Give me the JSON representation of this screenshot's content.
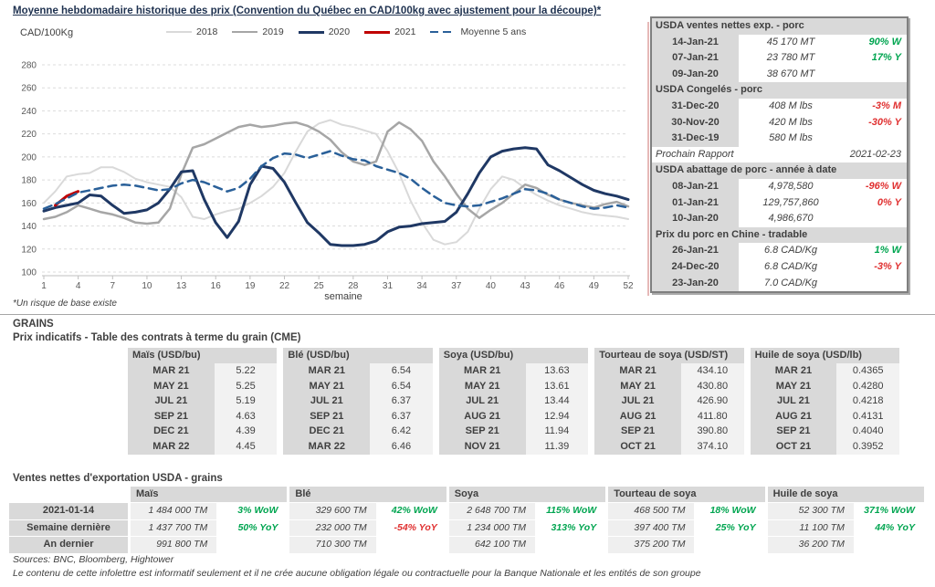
{
  "title": "Moyenne hebdomadaire historique des prix (Convention du Québec en CAD/100kg avec ajustement pour la découpe)*",
  "colors": {
    "green": "#00A550",
    "red": "#E03030",
    "navy": "#1f3864",
    "grid": "#dcdcdc",
    "axis": "#bfbfbf"
  },
  "chart_data": {
    "type": "line",
    "title": "Moyenne hebdomadaire historique des prix (Convention du Québec en CAD/100kg avec ajustement pour la découpe)*",
    "ylabel": "CAD/100Kg",
    "xlabel": "semaine",
    "footnote": "*Un risque de base existe",
    "xlim": [
      1,
      52
    ],
    "ylim": [
      100,
      280
    ],
    "y_step": 20,
    "x_ticks": [
      1,
      4,
      7,
      10,
      13,
      16,
      19,
      22,
      25,
      28,
      31,
      34,
      37,
      40,
      43,
      46,
      49,
      52
    ],
    "grid": "horizontal-dashed",
    "legend_position": "top",
    "series": [
      {
        "name": "2018",
        "color": "#d9d9d9",
        "dash": "solid",
        "width": 2,
        "values": [
          160,
          170,
          183,
          185,
          186,
          191,
          191,
          187,
          181,
          178,
          176,
          174,
          165,
          148,
          146,
          150,
          153,
          155,
          160,
          166,
          174,
          186,
          205,
          222,
          229,
          232,
          228,
          226,
          223,
          220,
          205,
          186,
          162,
          143,
          128,
          124,
          126,
          135,
          155,
          172,
          183,
          180,
          173,
          167,
          162,
          158,
          155,
          152,
          150,
          149,
          148,
          146
        ]
      },
      {
        "name": "2019",
        "color": "#a6a6a6",
        "dash": "solid",
        "width": 2.5,
        "values": [
          146,
          148,
          152,
          158,
          155,
          152,
          150,
          147,
          143,
          142,
          143,
          155,
          185,
          208,
          211,
          216,
          221,
          226,
          228,
          226,
          227,
          229,
          230,
          227,
          222,
          215,
          204,
          196,
          193,
          196,
          222,
          230,
          224,
          214,
          196,
          183,
          168,
          155,
          147,
          154,
          160,
          168,
          176,
          173,
          167,
          163,
          160,
          158,
          156,
          159,
          161,
          157
        ]
      },
      {
        "name": "2020",
        "color": "#1f3864",
        "dash": "solid",
        "width": 3,
        "values": [
          153,
          156,
          158,
          160,
          167,
          166,
          158,
          151,
          152,
          154,
          160,
          172,
          187,
          188,
          163,
          143,
          130,
          144,
          176,
          192,
          190,
          178,
          160,
          143,
          134,
          124,
          123,
          123,
          124,
          127,
          135,
          139,
          140,
          142,
          143,
          144,
          152,
          168,
          186,
          200,
          205,
          207,
          208,
          207,
          193,
          188,
          182,
          176,
          171,
          168,
          166,
          163
        ]
      },
      {
        "name": "2021",
        "color": "#c00000",
        "dash": "solid",
        "width": 3,
        "values": [
          null,
          158,
          166,
          170,
          null,
          null,
          null,
          null,
          null,
          null,
          null,
          null,
          null,
          null,
          null,
          null,
          null,
          null,
          null,
          null,
          null,
          null,
          null,
          null,
          null,
          null,
          null,
          null,
          null,
          null,
          null,
          null,
          null,
          null,
          null,
          null,
          null,
          null,
          null,
          null,
          null,
          null,
          null,
          null,
          null,
          null,
          null,
          null,
          null,
          null,
          null,
          null
        ]
      },
      {
        "name": "Moyenne 5 ans",
        "color": "#2a6099",
        "dash": "dashed",
        "width": 2.5,
        "values": [
          155,
          159,
          164,
          169,
          171,
          173,
          175,
          176,
          175,
          173,
          171,
          172,
          177,
          180,
          178,
          174,
          170,
          173,
          181,
          192,
          199,
          203,
          202,
          199,
          202,
          205,
          201,
          198,
          197,
          192,
          189,
          186,
          181,
          173,
          166,
          160,
          158,
          157,
          158,
          161,
          164,
          168,
          172,
          171,
          168,
          163,
          160,
          157,
          155,
          156,
          158,
          156
        ]
      }
    ]
  },
  "usda_panel": {
    "sections": [
      {
        "header": "USDA ventes nettes exp. - porc",
        "rows": [
          {
            "date": "14-Jan-21",
            "value": "45 170  MT",
            "pct": "90% W",
            "pct_color": "green"
          },
          {
            "date": "07-Jan-21",
            "value": "23 780  MT",
            "pct": "17% Y",
            "pct_color": "green"
          },
          {
            "date": "09-Jan-20",
            "value": "38 670  MT",
            "pct": ""
          }
        ]
      },
      {
        "header": "USDA Congelés - porc",
        "rows": [
          {
            "date": "31-Dec-20",
            "value": "408 M lbs",
            "pct": "-3% M",
            "pct_color": "red"
          },
          {
            "date": "30-Nov-20",
            "value": "420 M lbs",
            "pct": "-30% Y",
            "pct_color": "red"
          },
          {
            "date": "31-Dec-19",
            "value": "580 M lbs",
            "pct": ""
          }
        ],
        "note": {
          "label": "Prochain Rapport",
          "value": "2021-02-23"
        }
      },
      {
        "header": "USDA abattage de porc - année à date",
        "rows": [
          {
            "date": "08-Jan-21",
            "value": "4,978,580",
            "pct": "-96% W",
            "pct_color": "red"
          },
          {
            "date": "01-Jan-21",
            "value": "129,757,860",
            "pct": "0% Y",
            "pct_color": "red"
          },
          {
            "date": "10-Jan-20",
            "value": "4,986,670",
            "pct": ""
          }
        ]
      },
      {
        "header": "Prix du porc en Chine - tradable",
        "rows": [
          {
            "date": "26-Jan-21",
            "value": "6.8 CAD/Kg",
            "pct": "1% W",
            "pct_color": "green"
          },
          {
            "date": "24-Dec-20",
            "value": "6.8 CAD/Kg",
            "pct": "-3% Y",
            "pct_color": "red"
          },
          {
            "date": "23-Jan-20",
            "value": "7.0 CAD/Kg",
            "pct": ""
          }
        ]
      }
    ]
  },
  "grains": {
    "section_title": "GRAINS",
    "futures_title": "Prix indicatifs - Table des contrats à terme du grain (CME)",
    "futures": [
      {
        "commodity": "Maïs (USD/bu)",
        "rows": [
          [
            "MAR 21",
            "5.22"
          ],
          [
            "MAY 21",
            "5.25"
          ],
          [
            "JUL 21",
            "5.19"
          ],
          [
            "SEP 21",
            "4.63"
          ],
          [
            "DEC 21",
            "4.39"
          ],
          [
            "MAR 22",
            "4.45"
          ]
        ]
      },
      {
        "commodity": "Blé (USD/bu)",
        "rows": [
          [
            "MAR 21",
            "6.54"
          ],
          [
            "MAY 21",
            "6.54"
          ],
          [
            "JUL 21",
            "6.37"
          ],
          [
            "SEP 21",
            "6.37"
          ],
          [
            "DEC 21",
            "6.42"
          ],
          [
            "MAR 22",
            "6.46"
          ]
        ]
      },
      {
        "commodity": "Soya (USD/bu)",
        "rows": [
          [
            "MAR 21",
            "13.63"
          ],
          [
            "MAY 21",
            "13.61"
          ],
          [
            "JUL 21",
            "13.44"
          ],
          [
            "AUG 21",
            "12.94"
          ],
          [
            "SEP 21",
            "11.94"
          ],
          [
            "NOV 21",
            "11.39"
          ]
        ]
      },
      {
        "commodity": "Tourteau de soya (USD/ST)",
        "rows": [
          [
            "MAR 21",
            "434.10"
          ],
          [
            "MAY 21",
            "430.80"
          ],
          [
            "JUL 21",
            "426.90"
          ],
          [
            "AUG 21",
            "411.80"
          ],
          [
            "SEP 21",
            "390.80"
          ],
          [
            "OCT 21",
            "374.10"
          ]
        ]
      },
      {
        "commodity": "Huile de soya (USD/lb)",
        "rows": [
          [
            "MAR 21",
            "0.4365"
          ],
          [
            "MAY 21",
            "0.4280"
          ],
          [
            "JUL 21",
            "0.4218"
          ],
          [
            "AUG 21",
            "0.4131"
          ],
          [
            "SEP 21",
            "0.4040"
          ],
          [
            "OCT 21",
            "0.3952"
          ]
        ]
      }
    ],
    "exports_title": "Ventes nettes d'exportation USDA - grains",
    "exports": {
      "row_labels": [
        "2021-01-14",
        "Semaine dernière",
        "An dernier"
      ],
      "columns": [
        {
          "commodity": "Maïs",
          "rows": [
            {
              "value": "1 484 000 TM",
              "pct": "3% WoW",
              "pct_color": "green"
            },
            {
              "value": "1 437 700 TM",
              "pct": "50% YoY",
              "pct_color": "green"
            },
            {
              "value": "991 800 TM",
              "pct": ""
            }
          ]
        },
        {
          "commodity": "Blé",
          "rows": [
            {
              "value": "329 600 TM",
              "pct": "42% WoW",
              "pct_color": "green"
            },
            {
              "value": "232 000 TM",
              "pct": "-54% YoY",
              "pct_color": "red"
            },
            {
              "value": "710 300 TM",
              "pct": ""
            }
          ]
        },
        {
          "commodity": "Soya",
          "rows": [
            {
              "value": "2 648 700 TM",
              "pct": "115% WoW",
              "pct_color": "green"
            },
            {
              "value": "1 234 000 TM",
              "pct": "313% YoY",
              "pct_color": "green"
            },
            {
              "value": "642 100 TM",
              "pct": ""
            }
          ]
        },
        {
          "commodity": "Tourteau de soya",
          "rows": [
            {
              "value": "468 500 TM",
              "pct": "18% WoW",
              "pct_color": "green"
            },
            {
              "value": "397 400 TM",
              "pct": "25% YoY",
              "pct_color": "green"
            },
            {
              "value": "375 200 TM",
              "pct": ""
            }
          ]
        },
        {
          "commodity": "Huile de soya",
          "rows": [
            {
              "value": "52 300 TM",
              "pct": "371% WoW",
              "pct_color": "green"
            },
            {
              "value": "11 100 TM",
              "pct": "44% YoY",
              "pct_color": "green"
            },
            {
              "value": "36 200 TM",
              "pct": ""
            }
          ]
        }
      ]
    }
  },
  "footer": {
    "sources": "Sources: BNC, Bloomberg, Hightower",
    "disclaimer": "Le contenu de cette infolettre est informatif seulement et il ne crée aucune obligation légale ou contractuelle pour la Banque Nationale et les entités de son groupe"
  }
}
